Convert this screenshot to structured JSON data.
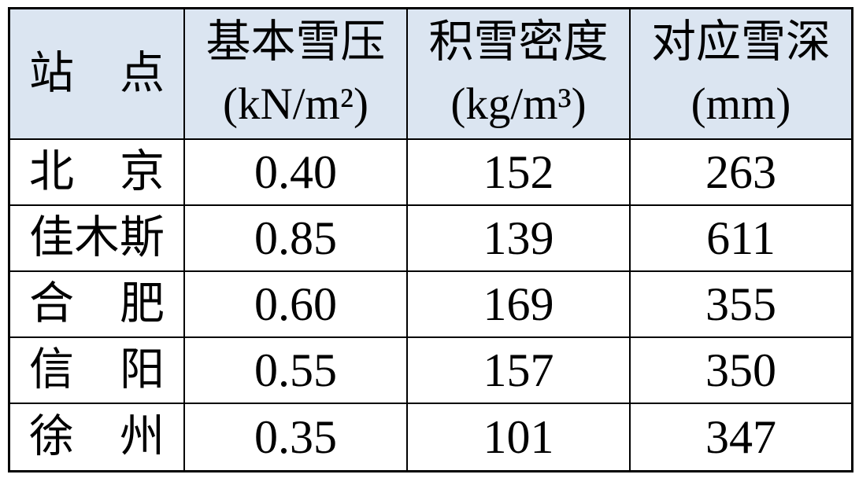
{
  "table": {
    "colors": {
      "header_bg": "#dbe5f1",
      "border": "#000000",
      "text": "#000000"
    },
    "columns": [
      {
        "title": "站点",
        "unit": ""
      },
      {
        "title": "基本雪压",
        "unit": "(kN/m²)"
      },
      {
        "title": "积雪密度",
        "unit": "(kg/m³)"
      },
      {
        "title": "对应雪深",
        "unit": "(mm)"
      }
    ],
    "rows": [
      {
        "station": "北京",
        "pressure": "0.40",
        "density": "152",
        "depth": "263"
      },
      {
        "station": "佳木斯",
        "pressure": "0.85",
        "density": "139",
        "depth": "611"
      },
      {
        "station": "合肥",
        "pressure": "0.60",
        "density": "169",
        "depth": "355"
      },
      {
        "station": "信阳",
        "pressure": "0.55",
        "density": "157",
        "depth": "350"
      },
      {
        "station": "徐州",
        "pressure": "0.35",
        "density": "101",
        "depth": "347"
      }
    ]
  }
}
